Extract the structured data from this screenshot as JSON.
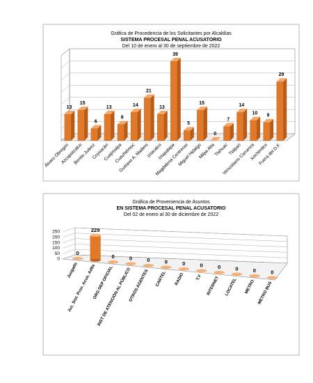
{
  "chart_data": [
    {
      "type": "bar3d",
      "title": "Gráfica de Procedencia de los Solicitantes por Alcaldías",
      "subtitle": "SISTEMA PROCESAL PENAL ACUSATORIO",
      "period": "Del  10  de  enero  al  30 de septiembre  de  2022",
      "categories": [
        "Álvaro Obregón",
        "Azcapotzalco",
        "Benito Juárez",
        "Coyoacán",
        "Cuajimalpa",
        "Cuauhtémoc",
        "Gustavo A. Madero",
        "Iztacalco",
        "Iztapalapa",
        "Magdalena Contreras",
        "Miguel Hidalgo",
        "Milpa Alta",
        "Tlahuac",
        "Tlalpan",
        "Venustiano Carranza",
        "Xochimilco",
        "Fuera del D.F."
      ],
      "values": [
        13,
        15,
        6,
        13,
        8,
        14,
        21,
        13,
        39,
        5,
        15,
        0,
        7,
        14,
        10,
        9,
        29
      ],
      "color": "#e07a2a"
    },
    {
      "type": "cylinder3d",
      "title": "Gráfica de Proveniencia de Asuntos",
      "subtitle": "EN SISTEMA PROCESAL PENAL ACUSATORIO",
      "period": "Del  02 de enero  al  30  de diciembre de  2022",
      "categories": [
        "Juzgado",
        "Juz. Sist. Proc. Acus. Adlts",
        "ORG DEP OFICIAL",
        "INST DE ATENCIÓN AL PÚBLICO",
        "OTROS AGENTES",
        "CARTEL",
        "RADIO",
        "T.V",
        "INTERNET",
        "LOCATEL",
        "METRO",
        "METRO BUS"
      ],
      "values": [
        0,
        229,
        0,
        0,
        0,
        0,
        0,
        0,
        0,
        0,
        0,
        0
      ],
      "color": "#e07a2a",
      "ylim": [
        0,
        250
      ],
      "yticks": [
        0,
        50,
        100,
        150,
        200,
        250
      ]
    }
  ]
}
